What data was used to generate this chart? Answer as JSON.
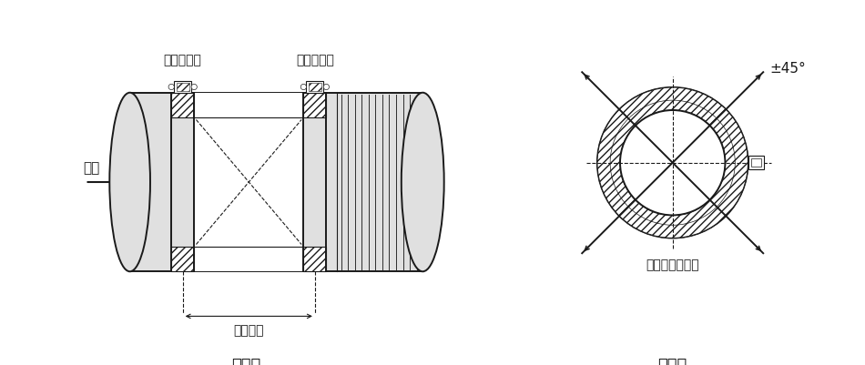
{
  "bg_color": "#ffffff",
  "line_color": "#1a1a1a",
  "light_fill": "#e0e0e0",
  "label_upstream": "上游传感器",
  "label_downstream": "下游传感器",
  "label_flow": "流向",
  "label_distance": "安装距离",
  "label_top_view": "俦视图",
  "label_side_view": "侧视图",
  "label_sensor_range": "传感器安装范围",
  "label_angle": "±45°",
  "font_size_label": 10,
  "font_size_title": 13
}
